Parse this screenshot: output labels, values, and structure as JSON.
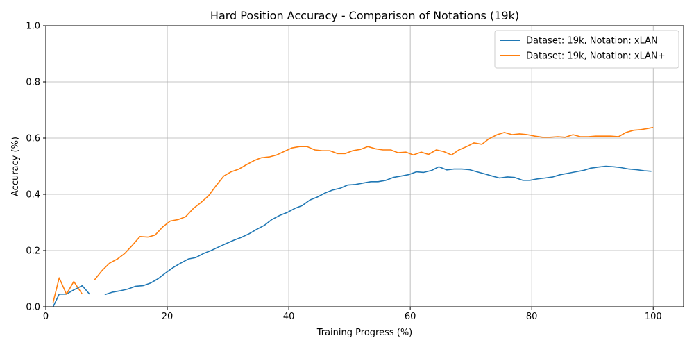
{
  "chart_data": {
    "type": "line",
    "title": "Hard Position Accuracy - Comparison of Notations (19k)",
    "xlabel": "Training Progress (%)",
    "ylabel": "Accuracy (%)",
    "xlim": [
      0,
      105
    ],
    "ylim": [
      0,
      1.0
    ],
    "xticks": [
      0,
      20,
      40,
      60,
      80,
      100
    ],
    "yticks": [
      0.0,
      0.2,
      0.4,
      0.6,
      0.8,
      1.0
    ],
    "grid": true,
    "legend_position": "top-right",
    "series": [
      {
        "name": "Dataset: 19k, Notation: xLAN",
        "color": "#1f77b4",
        "segments": [
          {
            "x": [
              1.2,
              2.2,
              3.4,
              4.6,
              6.0,
              7.2
            ],
            "y": [
              0.0,
              0.045,
              0.045,
              0.06,
              0.075,
              0.045
            ]
          },
          {
            "x": [
              9.7,
              11.0,
              12.3,
              13.5,
              14.8,
              16.0,
              17.3,
              18.5,
              19.7,
              21.0,
              22.2,
              23.5,
              24.7,
              26.0,
              27.2,
              28.5,
              29.7,
              31.0,
              32.2,
              33.5,
              34.7,
              36.0,
              37.2,
              38.5,
              39.7,
              41.0,
              42.2,
              43.5,
              44.7,
              46.0,
              47.2,
              48.5,
              49.7,
              51.0,
              52.2,
              53.5,
              54.7,
              56.0,
              57.2,
              58.5,
              59.7,
              61.0,
              62.2,
              63.5,
              64.7,
              66.0,
              67.2,
              68.5,
              69.7,
              71.0,
              72.2,
              73.5,
              74.7,
              76.0,
              77.2,
              78.5,
              79.7,
              81.0,
              82.2,
              83.5,
              84.7,
              86.0,
              87.2,
              88.5,
              89.7,
              91.0,
              92.2,
              93.5,
              94.7,
              96.0,
              97.2,
              98.5,
              99.7
            ],
            "y": [
              0.043,
              0.052,
              0.057,
              0.063,
              0.073,
              0.075,
              0.085,
              0.1,
              0.12,
              0.14,
              0.155,
              0.17,
              0.175,
              0.19,
              0.2,
              0.213,
              0.225,
              0.237,
              0.247,
              0.26,
              0.275,
              0.29,
              0.31,
              0.325,
              0.335,
              0.35,
              0.36,
              0.38,
              0.39,
              0.405,
              0.415,
              0.422,
              0.433,
              0.435,
              0.44,
              0.445,
              0.445,
              0.45,
              0.46,
              0.465,
              0.47,
              0.48,
              0.478,
              0.485,
              0.498,
              0.487,
              0.49,
              0.49,
              0.488,
              0.48,
              0.473,
              0.465,
              0.458,
              0.462,
              0.46,
              0.45,
              0.45,
              0.455,
              0.458,
              0.462,
              0.47,
              0.475,
              0.48,
              0.485,
              0.493,
              0.497,
              0.5,
              0.498,
              0.495,
              0.49,
              0.488,
              0.484,
              0.482
            ]
          }
        ]
      },
      {
        "name": "Dataset: 19k, Notation: xLAN+",
        "color": "#ff7f0e",
        "segments": [
          {
            "x": [
              1.2,
              2.2,
              3.4,
              4.6,
              6.0
            ],
            "y": [
              0.015,
              0.103,
              0.045,
              0.09,
              0.045
            ]
          },
          {
            "x": [
              8.0,
              9.3,
              10.5,
              11.8,
              13.0,
              14.3,
              15.5,
              16.8,
              18.0,
              19.3,
              20.5,
              21.8,
              23.0,
              24.3,
              25.5,
              26.8,
              28.0,
              29.3,
              30.5,
              31.8,
              33.0,
              34.3,
              35.5,
              36.8,
              38.0,
              39.3,
              40.5,
              41.8,
              43.0,
              44.3,
              45.5,
              46.8,
              48.0,
              49.3,
              50.5,
              51.8,
              53.0,
              54.3,
              55.5,
              56.8,
              58.0,
              59.3,
              60.5,
              61.8,
              63.0,
              64.3,
              65.5,
              66.8,
              68.0,
              69.3,
              70.5,
              71.8,
              73.0,
              74.3,
              75.5,
              76.8,
              78.0,
              79.3,
              80.5,
              81.8,
              83.0,
              84.3,
              85.5,
              86.8,
              88.0,
              89.3,
              90.5,
              91.8,
              93.0,
              94.3,
              95.5,
              96.8,
              98.0,
              99.3,
              100.0
            ],
            "y": [
              0.095,
              0.13,
              0.155,
              0.17,
              0.19,
              0.22,
              0.25,
              0.248,
              0.255,
              0.285,
              0.305,
              0.31,
              0.32,
              0.35,
              0.37,
              0.395,
              0.43,
              0.465,
              0.48,
              0.49,
              0.505,
              0.52,
              0.53,
              0.533,
              0.54,
              0.553,
              0.565,
              0.57,
              0.57,
              0.558,
              0.555,
              0.555,
              0.545,
              0.545,
              0.555,
              0.56,
              0.57,
              0.562,
              0.558,
              0.558,
              0.548,
              0.55,
              0.54,
              0.55,
              0.542,
              0.558,
              0.552,
              0.54,
              0.558,
              0.57,
              0.583,
              0.578,
              0.598,
              0.612,
              0.62,
              0.612,
              0.615,
              0.612,
              0.607,
              0.603,
              0.603,
              0.605,
              0.603,
              0.612,
              0.605,
              0.605,
              0.607,
              0.607,
              0.607,
              0.605,
              0.62,
              0.628,
              0.63,
              0.635,
              0.638
            ]
          }
        ]
      }
    ]
  }
}
